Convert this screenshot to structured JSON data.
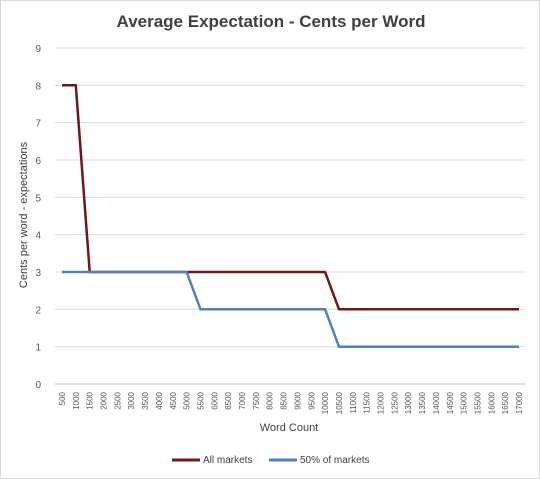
{
  "chart_data": {
    "type": "line",
    "title": "Average Expectation - Cents per Word",
    "xlabel": "Word Count",
    "ylabel": "Cents per word - expectations",
    "ylim": [
      0,
      9
    ],
    "yticks": [
      0,
      1,
      2,
      3,
      4,
      5,
      6,
      7,
      8,
      9
    ],
    "grid": true,
    "legend_position": "bottom",
    "categories": [
      "500",
      "1000",
      "1500",
      "2000",
      "2500",
      "3000",
      "3500",
      "4000",
      "4500",
      "5000",
      "5500",
      "6000",
      "6500",
      "7000",
      "7500",
      "8000",
      "8500",
      "9000",
      "9500",
      "10000",
      "10500",
      "11000",
      "11500",
      "12000",
      "12500",
      "13000",
      "13500",
      "14000",
      "14500",
      "15000",
      "15500",
      "16000",
      "16500",
      "17000"
    ],
    "series": [
      {
        "name": "All markets",
        "color": "#6b1a17",
        "values": [
          8,
          8,
          3,
          3,
          3,
          3,
          3,
          3,
          3,
          3,
          3,
          3,
          3,
          3,
          3,
          3,
          3,
          3,
          3,
          3,
          2,
          2,
          2,
          2,
          2,
          2,
          2,
          2,
          2,
          2,
          2,
          2,
          2,
          2
        ]
      },
      {
        "name": "50% of markets",
        "color": "#4f81bd",
        "values": [
          3,
          3,
          3,
          3,
          3,
          3,
          3,
          3,
          3,
          3,
          2,
          2,
          2,
          2,
          2,
          2,
          2,
          2,
          2,
          2,
          1,
          1,
          1,
          1,
          1,
          1,
          1,
          1,
          1,
          1,
          1,
          1,
          1,
          1
        ]
      }
    ]
  }
}
